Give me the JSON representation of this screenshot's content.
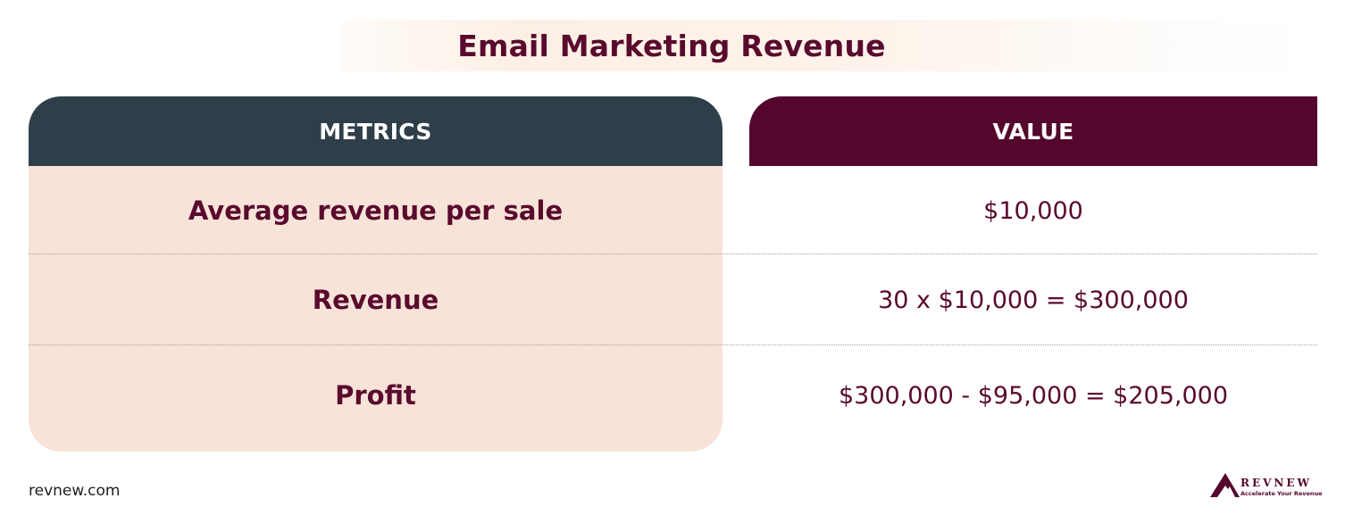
{
  "title": "Email Marketing Revenue",
  "table": {
    "headers": {
      "metric": "METRICS",
      "value": "VALUE"
    },
    "rows": [
      {
        "metric": "Average revenue per sale",
        "value": "$10,000"
      },
      {
        "metric": "Revenue",
        "value": "30 x $10,000 = $300,000"
      },
      {
        "metric": "Profit",
        "value": "$300,000 - $95,000 = $205,000"
      }
    ]
  },
  "footer": {
    "url": "revnew.com",
    "logo_name": "REVNEW",
    "logo_tagline": "Accelerate Your Revenue"
  },
  "colors": {
    "brand_maroon": "#54062d",
    "header_slate": "#2f3f4a",
    "metrics_background": "#f7e3d8",
    "text_maroon": "#5a0a2e"
  },
  "icons": {
    "logo_mark": "mountain-triangle-icon"
  }
}
